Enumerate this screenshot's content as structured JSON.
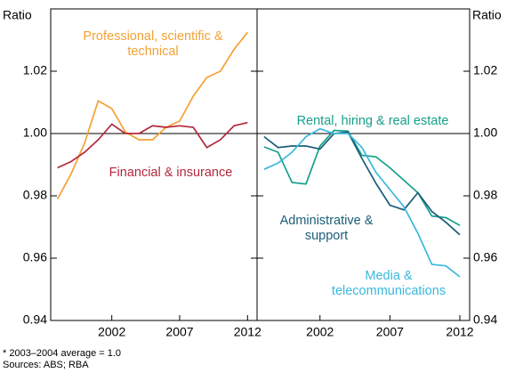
{
  "chart_data": [
    {
      "type": "line",
      "ylabel": "Ratio",
      "ylim": [
        0.94,
        1.04
      ],
      "yticks": [
        0.94,
        0.96,
        0.98,
        {
          "value": 1,
          "label": "1.00"
        },
        1.02
      ],
      "xlim": [
        1997.5,
        2012.7
      ],
      "xticks": [
        2002,
        2007,
        2012
      ],
      "x": [
        1998,
        1999,
        2000,
        2001,
        2002,
        2003,
        2004,
        2005,
        2006,
        2007,
        2008,
        2009,
        2010,
        2011,
        2012
      ],
      "series": [
        {
          "name": "Professional, scientific & technical",
          "color": "#f5a033",
          "values": [
            0.979,
            0.987,
            0.997,
            1.0105,
            1.008,
            1.0005,
            0.998,
            0.998,
            1.002,
            1.004,
            1.012,
            1.018,
            1.02,
            1.027,
            1.0325
          ]
        },
        {
          "name": "Financial & insurance",
          "color": "#b3283c",
          "values": [
            0.989,
            0.991,
            0.994,
            0.998,
            1.003,
            1.0,
            1.0,
            1.0025,
            1.002,
            1.0025,
            1.002,
            0.9955,
            0.998,
            1.0025,
            1.0035
          ]
        }
      ]
    },
    {
      "type": "line",
      "ylabel": "Ratio",
      "ylim": [
        0.94,
        1.04
      ],
      "yticks": [
        0.94,
        0.96,
        0.98,
        {
          "value": 1,
          "label": "1.00"
        },
        1.02
      ],
      "xlim": [
        1997.5,
        2012.7
      ],
      "xticks": [
        2002,
        2007,
        2012
      ],
      "x": [
        1998,
        1999,
        2000,
        2001,
        2002,
        2003,
        2004,
        2005,
        2006,
        2007,
        2008,
        2009,
        2010,
        2011,
        2012
      ],
      "series": [
        {
          "name": "Rental, hiring & real estate",
          "color": "#16a08b",
          "values": [
            0.9957,
            0.994,
            0.9843,
            0.9838,
            0.996,
            1.001,
            1.0008,
            0.993,
            0.9925,
            0.989,
            0.985,
            0.981,
            0.9735,
            0.973,
            0.9705
          ]
        },
        {
          "name": "Administrative & support",
          "color": "#1b5d78",
          "values": [
            0.999,
            0.9955,
            0.996,
            0.996,
            0.995,
            1.0,
            1.0005,
            0.992,
            0.984,
            0.977,
            0.9755,
            0.981,
            0.975,
            0.9715,
            0.9675
          ]
        },
        {
          "name": "Media & telecommunications",
          "color": "#3bb8dd",
          "values": [
            0.9885,
            0.9905,
            0.994,
            0.999,
            1.0015,
            1.0,
            1.0,
            0.9955,
            0.9875,
            0.982,
            0.9765,
            0.968,
            0.958,
            0.9575,
            0.954
          ]
        }
      ]
    }
  ],
  "notes": [
    "*    2003–2004 average = 1.0",
    "Sources: ABS; RBA"
  ]
}
